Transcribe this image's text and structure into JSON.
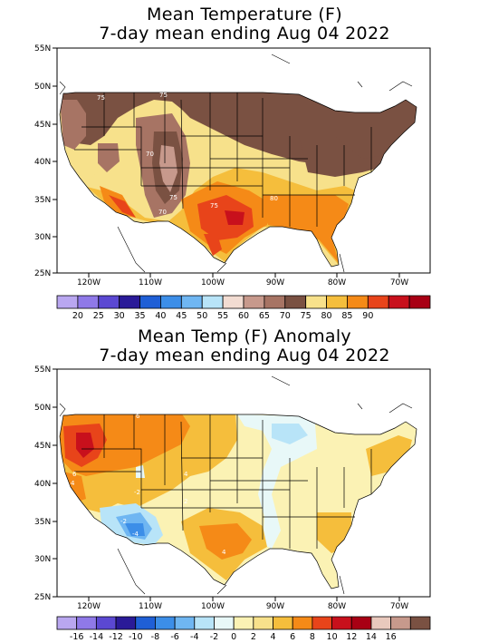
{
  "panels": [
    {
      "title_line1": "Mean Temperature (F)",
      "title_line2": "7-day mean ending Aug 04 2022",
      "lat_labels": [
        "55N",
        "50N",
        "45N",
        "40N",
        "35N",
        "30N",
        "25N"
      ],
      "lon_labels": [
        "120W",
        "110W",
        "100W",
        "90W",
        "80W",
        "70W"
      ],
      "contour_labels": [
        "75",
        "75",
        "70",
        "75",
        "70",
        "80",
        "75"
      ],
      "colorbar": {
        "colors": [
          "#b9a7f0",
          "#8f79e8",
          "#5b48d2",
          "#2a1a98",
          "#1f5fd6",
          "#3c8ee8",
          "#6fb6f2",
          "#b8e4f8",
          "#f2dcd2",
          "#c7998c",
          "#a77464",
          "#7a5142",
          "#f7e18b",
          "#f5be3c",
          "#f58a17",
          "#e8441a",
          "#c8101c",
          "#a80014"
        ],
        "labels": [
          "20",
          "25",
          "30",
          "35",
          "40",
          "45",
          "50",
          "55",
          "60",
          "65",
          "70",
          "75",
          "80",
          "85",
          "90"
        ]
      }
    },
    {
      "title_line1": "Mean Temp (F) Anomaly",
      "title_line2": "7-day mean ending Aug 04 2022",
      "lat_labels": [
        "55N",
        "50N",
        "45N",
        "40N",
        "35N",
        "30N",
        "25N"
      ],
      "lon_labels": [
        "120W",
        "110W",
        "100W",
        "90W",
        "80W",
        "70W"
      ],
      "contour_labels": [
        "6",
        "6",
        "4",
        "2",
        "4",
        "-2",
        "-2",
        "-4",
        "4"
      ],
      "colorbar": {
        "colors": [
          "#b9a7f0",
          "#8f79e8",
          "#5b48d2",
          "#2a1a98",
          "#1f5fd6",
          "#3c8ee8",
          "#6fb6f2",
          "#b8e4f8",
          "#e8f8f8",
          "#fbf2b4",
          "#f7e18b",
          "#f5be3c",
          "#f58a17",
          "#e8441a",
          "#c8101c",
          "#a80014",
          "#e9c9bd",
          "#c7998c",
          "#7a5142"
        ],
        "labels": [
          "-16",
          "-14",
          "-12",
          "-10",
          "-8",
          "-6",
          "-4",
          "-2",
          "0",
          "2",
          "4",
          "6",
          "8",
          "10",
          "12",
          "14",
          "16"
        ]
      }
    }
  ]
}
